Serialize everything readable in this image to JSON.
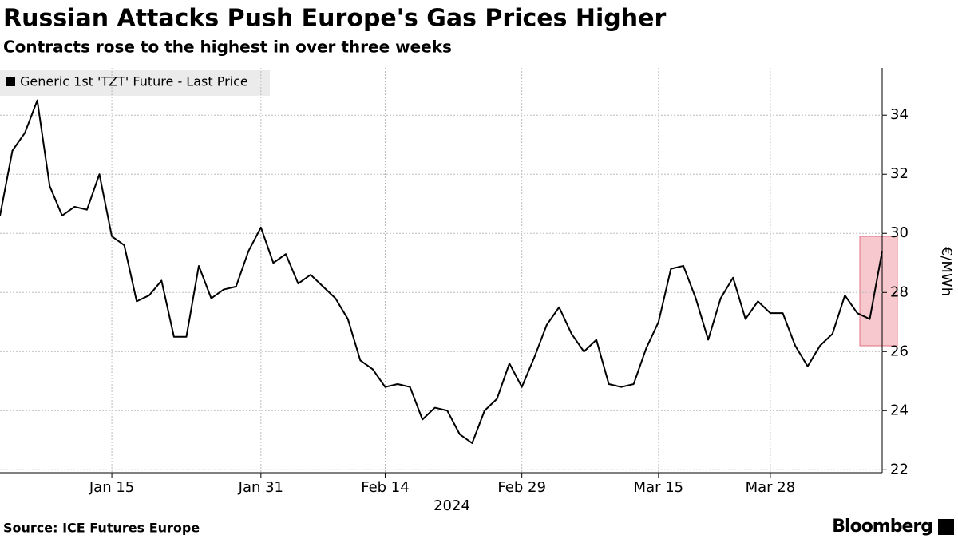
{
  "chart_data": {
    "type": "line",
    "title": "Russian Attacks Push Europe's Gas Prices Higher",
    "subtitle": "Contracts rose to the highest in over three weeks",
    "source": "Source: ICE Futures Europe",
    "brand": "Bloomberg",
    "xlabel": "2024",
    "ylabel": "€/MWh",
    "categories": [
      null,
      null,
      null,
      null,
      null,
      null,
      null,
      null,
      null,
      "Jan 15",
      null,
      null,
      null,
      null,
      null,
      null,
      null,
      null,
      null,
      null,
      null,
      "Jan 31",
      null,
      null,
      null,
      null,
      null,
      null,
      null,
      null,
      null,
      "Feb 14",
      null,
      null,
      null,
      null,
      null,
      null,
      null,
      null,
      null,
      null,
      "Feb 29",
      null,
      null,
      null,
      null,
      null,
      null,
      null,
      null,
      null,
      null,
      "Mar 15",
      null,
      null,
      null,
      null,
      null,
      null,
      null,
      null,
      "Mar 28",
      null,
      null,
      null,
      null,
      null,
      null,
      null,
      null,
      null
    ],
    "series": [
      {
        "name": "Generic 1st 'TZT' Future - Last Price",
        "color": "#000000",
        "values": [
          30.6,
          32.8,
          33.4,
          34.5,
          31.6,
          30.6,
          30.9,
          30.8,
          32.0,
          29.9,
          29.6,
          27.7,
          27.9,
          28.4,
          26.5,
          26.5,
          28.9,
          27.8,
          28.1,
          28.2,
          29.4,
          30.2,
          29.0,
          29.3,
          28.3,
          28.6,
          28.2,
          27.8,
          27.1,
          25.7,
          25.4,
          24.8,
          24.9,
          24.8,
          23.7,
          24.1,
          24.0,
          23.2,
          22.9,
          24.0,
          24.4,
          25.6,
          24.8,
          25.8,
          26.9,
          27.5,
          26.6,
          26.0,
          26.4,
          24.9,
          24.8,
          24.9,
          26.1,
          27.0,
          28.8,
          28.9,
          27.8,
          26.4,
          27.8,
          28.5,
          27.1,
          27.7,
          27.3,
          27.3,
          26.2,
          25.5,
          26.2,
          26.6,
          27.9,
          27.3,
          27.1,
          29.4
        ]
      }
    ],
    "ylim": [
      21.9,
      35.6
    ],
    "yticks": [
      22,
      24,
      26,
      28,
      30,
      32,
      34
    ],
    "grid": true
  }
}
